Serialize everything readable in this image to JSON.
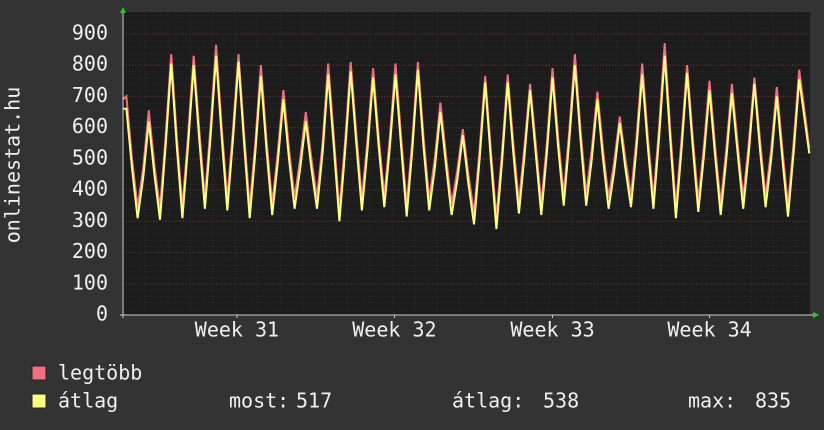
{
  "chart_data": {
    "type": "line",
    "ylabel": "onlinestat.hu",
    "xlim": [
      0,
      30.63
    ],
    "ylim": [
      0,
      970
    ],
    "yticks": [
      0,
      100,
      200,
      300,
      400,
      500,
      600,
      700,
      800,
      900
    ],
    "xticks": [
      {
        "value": 5.08,
        "label": "Week 31"
      },
      {
        "value": 12.1,
        "label": "Week 32"
      },
      {
        "value": 19.15,
        "label": "Week 33"
      },
      {
        "value": 26.15,
        "label": "Week 34"
      }
    ],
    "grid": true,
    "x": [
      0,
      0.15,
      0.4,
      0.65,
      0.9,
      1.15,
      1.4,
      1.65,
      1.9,
      2.15,
      2.4,
      2.65,
      2.9,
      3.15,
      3.4,
      3.65,
      3.9,
      4.15,
      4.4,
      4.65,
      4.9,
      5.15,
      5.4,
      5.65,
      5.9,
      6.15,
      6.4,
      6.65,
      6.9,
      7.15,
      7.4,
      7.65,
      7.9,
      8.15,
      8.4,
      8.65,
      8.9,
      9.15,
      9.4,
      9.65,
      9.9,
      10.15,
      10.4,
      10.65,
      10.9,
      11.15,
      11.4,
      11.65,
      11.9,
      12.15,
      12.4,
      12.65,
      12.9,
      13.15,
      13.4,
      13.65,
      13.9,
      14.15,
      14.4,
      14.65,
      14.9,
      15.15,
      15.4,
      15.65,
      15.9,
      16.15,
      16.4,
      16.65,
      16.9,
      17.15,
      17.4,
      17.65,
      17.9,
      18.15,
      18.4,
      18.65,
      18.9,
      19.15,
      19.4,
      19.65,
      19.9,
      20.15,
      20.4,
      20.65,
      20.9,
      21.15,
      21.4,
      21.65,
      21.9,
      22.15,
      22.4,
      22.65,
      22.9,
      23.15,
      23.4,
      23.65,
      23.9,
      24.15,
      24.4,
      24.65,
      24.9,
      25.15,
      25.4,
      25.65,
      25.9,
      26.15,
      26.4,
      26.65,
      26.9,
      27.15,
      27.4,
      27.65,
      27.9,
      28.15,
      28.4,
      28.65,
      28.9,
      29.15,
      29.4,
      29.65,
      29.9,
      30.15,
      30.6
    ],
    "series": [
      {
        "name": "legtöbb",
        "color": "#f07080",
        "values": [
          690,
          700,
          500,
          345,
          470,
          655,
          480,
          340,
          570,
          835,
          570,
          345,
          570,
          830,
          590,
          375,
          600,
          865,
          600,
          370,
          590,
          835,
          580,
          345,
          550,
          800,
          560,
          355,
          520,
          720,
          530,
          375,
          500,
          650,
          500,
          375,
          550,
          805,
          570,
          335,
          550,
          810,
          580,
          370,
          560,
          790,
          570,
          380,
          570,
          805,
          570,
          350,
          560,
          810,
          570,
          370,
          500,
          680,
          510,
          355,
          460,
          595,
          450,
          325,
          530,
          765,
          530,
          310,
          520,
          770,
          550,
          360,
          540,
          740,
          550,
          355,
          550,
          790,
          570,
          385,
          590,
          835,
          590,
          385,
          530,
          715,
          530,
          375,
          490,
          635,
          500,
          380,
          570,
          805,
          570,
          375,
          600,
          870,
          590,
          345,
          560,
          800,
          570,
          365,
          540,
          750,
          540,
          355,
          530,
          740,
          550,
          375,
          550,
          760,
          560,
          380,
          530,
          730,
          530,
          350,
          550,
          785,
          535
        ]
      },
      {
        "name": "átlag",
        "color": "#ffff80",
        "values": [
          660,
          660,
          470,
          310,
          440,
          620,
          450,
          305,
          540,
          805,
          540,
          310,
          540,
          800,
          560,
          340,
          570,
          830,
          570,
          335,
          560,
          810,
          550,
          310,
          520,
          765,
          530,
          320,
          490,
          690,
          500,
          340,
          470,
          620,
          470,
          340,
          520,
          770,
          540,
          300,
          520,
          780,
          550,
          335,
          530,
          760,
          540,
          345,
          540,
          770,
          540,
          315,
          530,
          785,
          540,
          335,
          470,
          650,
          480,
          320,
          430,
          575,
          420,
          290,
          500,
          745,
          500,
          275,
          490,
          745,
          520,
          325,
          510,
          720,
          520,
          320,
          520,
          760,
          540,
          350,
          560,
          800,
          560,
          350,
          500,
          690,
          500,
          340,
          460,
          615,
          470,
          345,
          540,
          770,
          540,
          340,
          570,
          830,
          560,
          310,
          530,
          775,
          540,
          330,
          510,
          720,
          510,
          320,
          500,
          710,
          520,
          340,
          520,
          740,
          530,
          345,
          500,
          700,
          500,
          315,
          520,
          755,
          517
        ]
      }
    ],
    "stats": [
      {
        "label": "most:",
        "value": 517
      },
      {
        "label": "átlag:",
        "value": 538
      },
      {
        "label": "max:",
        "value": 835
      }
    ]
  }
}
